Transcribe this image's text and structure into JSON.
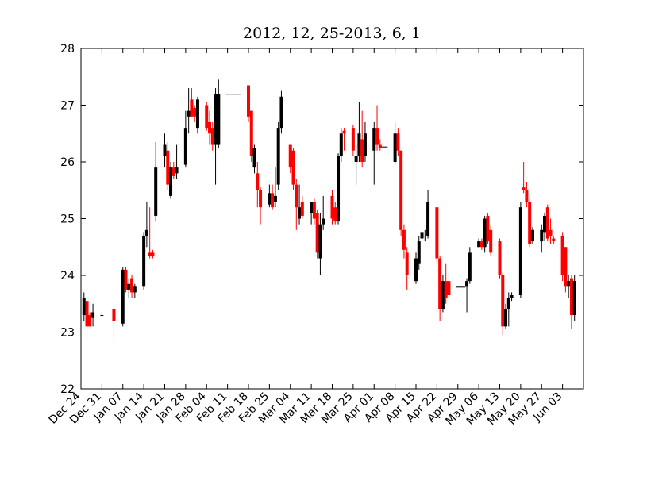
{
  "chart_data": {
    "type": "candlestick",
    "title": "2012, 12, 25-2013, 6, 1",
    "x": [
      "Dec 25",
      "Dec 26",
      "Dec 27",
      "Dec 28",
      "Dec 31",
      "Jan 04",
      "Jan 07",
      "Jan 08",
      "Jan 09",
      "Jan 10",
      "Jan 11",
      "Jan 14",
      "Jan 15",
      "Jan 16",
      "Jan 17",
      "Jan 18",
      "Jan 21",
      "Jan 22",
      "Jan 23",
      "Jan 24",
      "Jan 25",
      "Jan 28",
      "Jan 29",
      "Jan 30",
      "Jan 31",
      "Feb 01",
      "Feb 04",
      "Feb 05",
      "Feb 06",
      "Feb 07",
      "Feb 08",
      "Feb 11",
      "Feb 12",
      "Feb 13",
      "Feb 14",
      "Feb 15",
      "Feb 18",
      "Feb 19",
      "Feb 20",
      "Feb 21",
      "Feb 22",
      "Feb 25",
      "Feb 26",
      "Feb 27",
      "Feb 28",
      "Mar 01",
      "Mar 04",
      "Mar 05",
      "Mar 06",
      "Mar 07",
      "Mar 08",
      "Mar 11",
      "Mar 12",
      "Mar 13",
      "Mar 14",
      "Mar 15",
      "Mar 18",
      "Mar 19",
      "Mar 20",
      "Mar 21",
      "Mar 22",
      "Mar 25",
      "Mar 26",
      "Mar 27",
      "Mar 28",
      "Mar 29",
      "Apr 01",
      "Apr 02",
      "Apr 03",
      "Apr 04",
      "Apr 05",
      "Apr 08",
      "Apr 09",
      "Apr 10",
      "Apr 11",
      "Apr 12",
      "Apr 15",
      "Apr 16",
      "Apr 17",
      "Apr 18",
      "Apr 19",
      "Apr 22",
      "Apr 23",
      "Apr 24",
      "Apr 25",
      "Apr 26",
      "Apr 29",
      "Apr 30",
      "May 01",
      "May 02",
      "May 03",
      "May 06",
      "May 07",
      "May 08",
      "May 09",
      "May 10",
      "May 13",
      "May 14",
      "May 15",
      "May 16",
      "May 17",
      "May 20",
      "May 21",
      "May 22",
      "May 23",
      "May 24",
      "May 27",
      "May 28",
      "May 29",
      "May 30",
      "May 31",
      "Jun 03",
      "Jun 04",
      "Jun 05",
      "Jun 06",
      "Jun 07"
    ],
    "open": [
      23.3,
      23.55,
      23.3,
      23.25,
      23.3,
      23.4,
      23.15,
      24.1,
      23.75,
      23.95,
      23.7,
      23.8,
      24.7,
      24.4,
      24.4,
      25.05,
      26.1,
      26.2,
      25.4,
      25.9,
      25.8,
      25.95,
      26.8,
      27.1,
      26.95,
      26.6,
      27.0,
      26.7,
      26.6,
      26.3,
      26.3,
      27.2,
      27.2,
      27.2,
      27.2,
      27.2,
      27.35,
      26.9,
      25.9,
      25.8,
      25.5,
      25.25,
      25.45,
      25.3,
      25.6,
      26.6,
      26.3,
      26.2,
      25.6,
      25.0,
      25.3,
      25.1,
      25.3,
      25.1,
      24.3,
      24.9,
      25.4,
      25.2,
      24.95,
      26.1,
      26.55,
      26.6,
      26.0,
      26.1,
      26.4,
      26.1,
      26.2,
      26.6,
      26.3,
      26.27,
      26.27,
      26.0,
      26.5,
      26.2,
      24.8,
      24.4,
      23.9,
      24.2,
      24.65,
      24.7,
      24.7,
      25.2,
      24.3,
      23.4,
      23.9,
      23.9,
      23.8,
      23.8,
      23.8,
      23.8,
      23.9,
      24.5,
      24.6,
      24.5,
      25.05,
      24.8,
      24.6,
      24.0,
      23.1,
      23.4,
      23.6,
      23.65,
      25.55,
      25.5,
      25.3,
      24.6,
      24.6,
      24.75,
      25.2,
      24.8,
      24.65,
      24.7,
      24.5,
      23.8,
      23.95,
      23.3
    ],
    "high": [
      23.7,
      23.6,
      23.35,
      23.5,
      23.35,
      23.45,
      24.15,
      24.15,
      23.95,
      24.0,
      23.85,
      24.75,
      25.3,
      25.2,
      24.45,
      26.35,
      26.5,
      26.35,
      26.0,
      26.0,
      26.3,
      26.9,
      27.3,
      27.3,
      27.0,
      27.15,
      27.05,
      26.9,
      26.7,
      27.3,
      27.45,
      27.2,
      27.2,
      27.2,
      27.2,
      27.2,
      27.35,
      26.9,
      26.3,
      26.0,
      25.55,
      25.6,
      25.6,
      25.9,
      26.7,
      27.25,
      26.3,
      26.25,
      25.7,
      25.6,
      25.4,
      25.3,
      25.35,
      25.15,
      25.1,
      25.4,
      25.5,
      25.3,
      26.15,
      26.6,
      26.6,
      26.65,
      26.3,
      27.05,
      26.9,
      26.7,
      26.7,
      27.0,
      26.4,
      26.27,
      26.27,
      26.7,
      26.6,
      26.2,
      24.9,
      24.5,
      24.4,
      24.7,
      24.8,
      24.8,
      25.5,
      25.2,
      24.35,
      24.0,
      24.2,
      24.05,
      23.8,
      23.8,
      23.8,
      23.95,
      24.5,
      24.65,
      24.65,
      25.05,
      25.1,
      24.9,
      24.65,
      24.05,
      23.5,
      23.7,
      23.7,
      25.3,
      26.0,
      25.65,
      25.35,
      24.85,
      24.9,
      25.1,
      25.25,
      25.0,
      24.7,
      24.75,
      24.5,
      24.0,
      24.0,
      24.0
    ],
    "low": [
      23.2,
      22.85,
      23.1,
      23.1,
      23.3,
      22.85,
      23.1,
      23.7,
      23.6,
      23.6,
      23.6,
      23.75,
      24.5,
      24.3,
      24.3,
      24.95,
      25.9,
      25.5,
      25.35,
      25.7,
      25.7,
      25.9,
      26.5,
      26.8,
      26.7,
      26.5,
      26.55,
      26.3,
      26.2,
      25.6,
      26.25,
      27.2,
      27.2,
      27.2,
      27.2,
      27.2,
      26.7,
      26.0,
      25.8,
      25.2,
      24.9,
      25.2,
      25.15,
      25.2,
      25.5,
      26.5,
      25.8,
      25.5,
      24.8,
      24.9,
      25.0,
      24.9,
      24.9,
      24.3,
      24.0,
      24.8,
      24.9,
      24.9,
      24.9,
      26.0,
      26.2,
      26.1,
      25.6,
      26.0,
      25.9,
      26.0,
      25.6,
      26.2,
      26.2,
      26.27,
      26.27,
      25.95,
      26.1,
      24.7,
      24.3,
      23.75,
      23.85,
      24.1,
      24.6,
      24.6,
      24.65,
      24.2,
      23.2,
      23.35,
      23.5,
      23.6,
      23.8,
      23.8,
      23.8,
      23.35,
      23.85,
      24.5,
      24.45,
      24.4,
      24.55,
      24.35,
      23.95,
      22.95,
      23.05,
      23.1,
      23.55,
      23.6,
      25.45,
      25.2,
      24.5,
      24.55,
      24.4,
      24.6,
      24.6,
      24.55,
      24.55,
      23.9,
      23.7,
      23.6,
      23.05,
      23.2
    ],
    "close": [
      23.6,
      23.1,
      23.1,
      23.35,
      23.3,
      23.2,
      24.1,
      23.75,
      23.85,
      23.7,
      23.8,
      24.7,
      24.8,
      24.35,
      24.35,
      25.9,
      26.3,
      25.6,
      25.9,
      25.75,
      25.9,
      26.6,
      26.9,
      26.8,
      26.8,
      27.1,
      26.6,
      26.5,
      26.3,
      27.2,
      27.2,
      27.2,
      27.2,
      27.2,
      27.2,
      27.2,
      26.8,
      26.1,
      26.25,
      25.5,
      25.2,
      25.45,
      25.2,
      25.4,
      26.6,
      27.15,
      25.9,
      25.6,
      25.2,
      25.2,
      25.05,
      25.3,
      25.0,
      24.4,
      24.9,
      25.0,
      25.0,
      24.95,
      26.1,
      26.5,
      26.5,
      26.2,
      26.1,
      26.5,
      26.0,
      26.5,
      26.6,
      26.3,
      26.25,
      26.27,
      26.27,
      26.5,
      26.2,
      24.8,
      24.45,
      24.0,
      24.3,
      24.6,
      24.75,
      24.7,
      25.3,
      24.3,
      23.4,
      23.9,
      23.6,
      23.65,
      23.8,
      23.8,
      23.8,
      23.9,
      24.4,
      24.6,
      24.5,
      25.0,
      24.6,
      24.4,
      24.0,
      23.1,
      23.4,
      23.6,
      23.65,
      25.2,
      25.5,
      25.3,
      24.55,
      24.8,
      24.8,
      25.05,
      24.65,
      24.7,
      24.6,
      24.0,
      23.8,
      23.9,
      23.3,
      23.9
    ],
    "colorup": "#000000",
    "colordown": "#ff0000",
    "xlim": [
      "Dec 24",
      "Jun 10"
    ],
    "xticks": [
      "Dec 24",
      "Dec 31",
      "Jan 07",
      "Jan 14",
      "Jan 21",
      "Jan 28",
      "Feb 04",
      "Feb 11",
      "Feb 18",
      "Feb 25",
      "Mar 04",
      "Mar 11",
      "Mar 18",
      "Mar 25",
      "Apr 01",
      "Apr 08",
      "Apr 15",
      "Apr 22",
      "Apr 29",
      "May 06",
      "May 13",
      "May 20",
      "May 27",
      "Jun 03"
    ],
    "ylim": [
      22,
      28
    ],
    "yticks": [
      22,
      23,
      24,
      25,
      26,
      27,
      28
    ],
    "grid": false
  }
}
